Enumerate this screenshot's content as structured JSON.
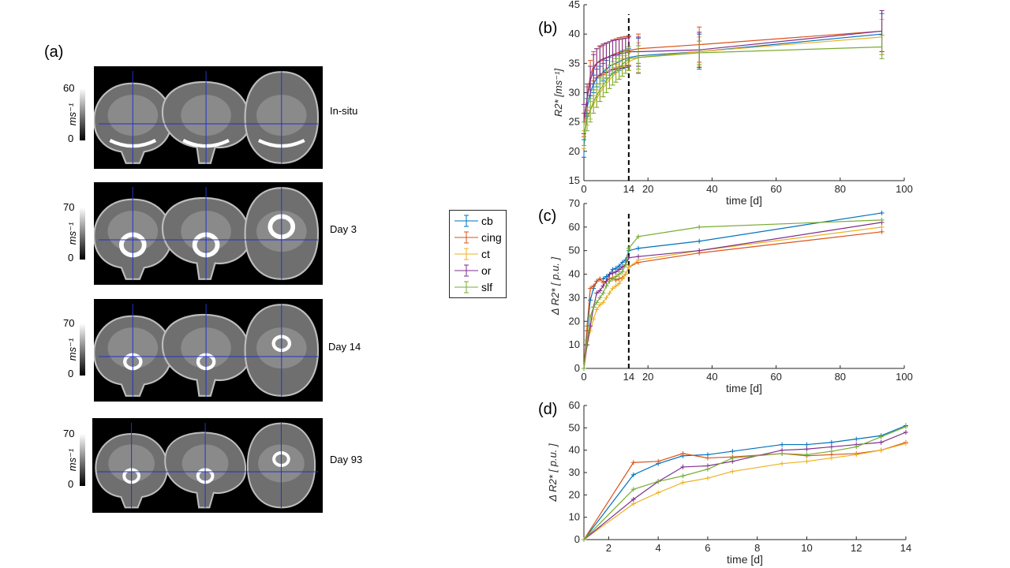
{
  "figure": {
    "panel_a_label": "(a)",
    "rows": [
      {
        "label": "In-situ",
        "cbar_max": "60",
        "cbar_min": "0",
        "cbar_unit": "ms⁻¹"
      },
      {
        "label": "Day 3",
        "cbar_max": "70",
        "cbar_min": "0",
        "cbar_unit": "ms⁻¹"
      },
      {
        "label": "Day 14",
        "cbar_max": "70",
        "cbar_min": "0",
        "cbar_unit": "ms⁻¹"
      },
      {
        "label": "Day 93",
        "cbar_max": "70",
        "cbar_min": "0",
        "cbar_unit": "ms⁻¹"
      }
    ],
    "views": [
      "coronal",
      "sagittal",
      "axial"
    ]
  },
  "legend": {
    "items": [
      {
        "name": "cb",
        "color": "#0072BD"
      },
      {
        "name": "cing",
        "color": "#D95319"
      },
      {
        "name": "ct",
        "color": "#EDB120"
      },
      {
        "name": "or",
        "color": "#7E2F8E"
      },
      {
        "name": "slf",
        "color": "#77AC30"
      }
    ]
  },
  "chart_data": [
    {
      "id": "b",
      "panel_label": "(b)",
      "type": "line",
      "xlabel": "time [d]",
      "ylabel": "R2* [ms⁻¹]",
      "xlim": [
        0,
        100
      ],
      "ylim": [
        15,
        45
      ],
      "xticks": [
        0,
        14,
        20,
        40,
        60,
        80,
        100
      ],
      "yticks": [
        15,
        20,
        25,
        30,
        35,
        40,
        45
      ],
      "vline": 14,
      "errorbars": true,
      "x": [
        0,
        1,
        2,
        3,
        4,
        5,
        6,
        7,
        8,
        9,
        10,
        11,
        12,
        13,
        14,
        17,
        36,
        93
      ],
      "series": [
        {
          "name": "cb",
          "values": [
            20.5,
            27.5,
            30.0,
            31.5,
            32.5,
            33.0,
            33.5,
            34.0,
            34.5,
            34.8,
            35.0,
            35.3,
            35.6,
            35.8,
            36.0,
            36.3,
            37.0,
            40.0
          ],
          "err": [
            1.5,
            1.5,
            1.5,
            1.5,
            1.5,
            1.5,
            1.5,
            1.5,
            1.5,
            1.5,
            1.5,
            1.5,
            1.5,
            1.5,
            1.5,
            3.0,
            3.0,
            3.5
          ]
        },
        {
          "name": "cing",
          "values": [
            24.5,
            29.0,
            33.0,
            34.5,
            35.0,
            35.3,
            35.6,
            35.9,
            36.2,
            36.5,
            36.7,
            36.9,
            37.0,
            37.1,
            37.2,
            37.5,
            38.2,
            40.5
          ],
          "err": [
            2.0,
            2.0,
            2.5,
            2.5,
            2.5,
            2.5,
            2.5,
            2.5,
            2.5,
            2.5,
            2.5,
            2.5,
            2.5,
            2.5,
            2.5,
            2.5,
            3.0,
            3.5
          ]
        },
        {
          "name": "ct",
          "values": [
            22.0,
            26.0,
            27.0,
            28.0,
            29.0,
            30.0,
            30.8,
            31.5,
            32.2,
            32.8,
            33.3,
            33.8,
            34.3,
            34.8,
            35.3,
            36.0,
            37.0,
            39.5
          ],
          "err": [
            1.5,
            1.5,
            1.5,
            1.5,
            1.5,
            1.5,
            1.5,
            1.5,
            1.5,
            1.5,
            1.5,
            1.5,
            1.5,
            1.5,
            1.5,
            2.5,
            2.5,
            3.0
          ]
        },
        {
          "name": "or",
          "values": [
            25.5,
            29.0,
            32.0,
            34.0,
            35.0,
            35.5,
            35.8,
            36.0,
            36.2,
            36.4,
            36.5,
            36.6,
            36.7,
            36.8,
            37.0,
            37.0,
            37.3,
            40.5
          ],
          "err": [
            2.5,
            2.5,
            2.5,
            2.5,
            2.5,
            2.5,
            2.5,
            2.5,
            2.5,
            2.5,
            2.5,
            2.5,
            2.5,
            2.5,
            2.5,
            2.5,
            3.0,
            3.5
          ]
        },
        {
          "name": "slf",
          "values": [
            23.0,
            25.5,
            27.0,
            28.5,
            29.5,
            30.5,
            31.3,
            32.0,
            32.7,
            33.3,
            33.8,
            34.3,
            34.8,
            35.3,
            35.8,
            36.0,
            36.8,
            37.8
          ],
          "err": [
            2.0,
            2.0,
            2.0,
            2.0,
            2.0,
            2.0,
            2.0,
            2.0,
            2.0,
            2.0,
            2.0,
            2.0,
            2.0,
            2.0,
            2.0,
            2.0,
            2.0,
            2.0
          ]
        }
      ]
    },
    {
      "id": "c",
      "panel_label": "(c)",
      "type": "line",
      "xlabel": "time [d]",
      "ylabel": "Δ R2* [ p.u. ]",
      "xlim": [
        0,
        100
      ],
      "ylim": [
        0,
        70
      ],
      "xticks": [
        0,
        14,
        20,
        40,
        60,
        80,
        100
      ],
      "yticks": [
        0,
        10,
        20,
        30,
        40,
        50,
        60,
        70
      ],
      "vline": 14,
      "errorbars": false,
      "x": [
        0,
        1,
        2,
        3,
        4,
        5,
        6,
        7,
        8,
        9,
        10,
        11,
        12,
        13,
        14,
        17,
        36,
        93
      ],
      "series": [
        {
          "name": "cb",
          "values": [
            0,
            16,
            29,
            34,
            37,
            38,
            38,
            39,
            40,
            42,
            42.5,
            43.5,
            45,
            46,
            50,
            51,
            54,
            66
          ]
        },
        {
          "name": "cing",
          "values": [
            0,
            18,
            34,
            35,
            37,
            38,
            36.5,
            37,
            38,
            38.5,
            37.5,
            38,
            38.5,
            40,
            43,
            45,
            49,
            58
          ]
        },
        {
          "name": "ct",
          "values": [
            0,
            10,
            16,
            21,
            25,
            27,
            28,
            30,
            32,
            34,
            35,
            36,
            38,
            40,
            43,
            46,
            50,
            60
          ]
        },
        {
          "name": "or",
          "values": [
            0,
            10,
            18,
            26,
            32,
            33,
            35,
            37,
            40,
            40.5,
            41,
            42,
            43,
            44,
            47,
            47.5,
            50,
            62
          ]
        },
        {
          "name": "slf",
          "values": [
            0,
            12,
            22,
            26,
            28,
            30,
            32,
            35,
            37,
            38,
            39,
            40,
            41,
            44,
            51,
            56,
            60,
            63
          ]
        }
      ]
    },
    {
      "id": "d",
      "panel_label": "(d)",
      "type": "line",
      "xlabel": "time [d]",
      "ylabel": "Δ R2* [ p.u. ]",
      "xlim": [
        1,
        14
      ],
      "ylim": [
        0,
        60
      ],
      "xticks": [
        2,
        4,
        6,
        8,
        10,
        12,
        14
      ],
      "yticks": [
        0,
        10,
        20,
        30,
        40,
        50,
        60
      ],
      "vline": null,
      "errorbars": false,
      "x": [
        1,
        3,
        4,
        5,
        6,
        7,
        9,
        10,
        11,
        12,
        13,
        14
      ],
      "series": [
        {
          "name": "cb",
          "values": [
            0,
            29,
            34,
            37.5,
            38,
            39.5,
            42.5,
            42.5,
            43.5,
            45,
            46.5,
            51
          ]
        },
        {
          "name": "cing",
          "values": [
            0,
            34.5,
            35,
            38.5,
            36.5,
            37,
            38.5,
            37.5,
            38,
            38.5,
            40,
            43.5
          ]
        },
        {
          "name": "ct",
          "values": [
            0,
            16,
            21,
            25.5,
            27.5,
            30.5,
            34,
            35,
            36.5,
            38,
            40,
            43
          ]
        },
        {
          "name": "or",
          "values": [
            0,
            18,
            26,
            32.5,
            33,
            35,
            40,
            40.5,
            41.5,
            42.5,
            43.5,
            48
          ]
        },
        {
          "name": "slf",
          "values": [
            0,
            22.5,
            26,
            28.5,
            31.5,
            36.5,
            38.5,
            38,
            39.5,
            41.5,
            46,
            50.5
          ]
        }
      ]
    }
  ]
}
